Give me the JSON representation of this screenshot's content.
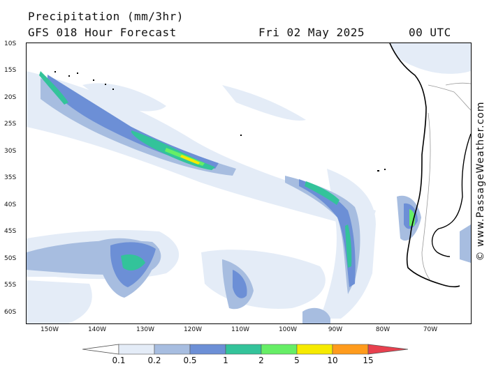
{
  "header": {
    "title": "Precipitation (mm/3hr)",
    "model": "GFS 018 Hour Forecast",
    "date": "Fri 02 May 2025",
    "time": "00 UTC"
  },
  "credit": "© www.PassageWeather.com",
  "map": {
    "lat_labels": [
      "10S",
      "15S",
      "20S",
      "25S",
      "30S",
      "35S",
      "40S",
      "45S",
      "50S",
      "55S",
      "60S"
    ],
    "lon_labels": [
      "150W",
      "140W",
      "130W",
      "120W",
      "110W",
      "100W",
      "90W",
      "80W",
      "70W"
    ],
    "colors": {
      "land_outline": "#000000",
      "borders": "#999999"
    }
  },
  "legend": {
    "labels": [
      "0.1",
      "0.2",
      "0.5",
      "1",
      "2",
      "5",
      "10",
      "15"
    ],
    "colors": [
      "#ffffff",
      "#e4ecf7",
      "#a7bde0",
      "#6c8fd6",
      "#33c39a",
      "#66ee66",
      "#f6ea00",
      "#ff9b1c",
      "#e8404e"
    ]
  }
}
